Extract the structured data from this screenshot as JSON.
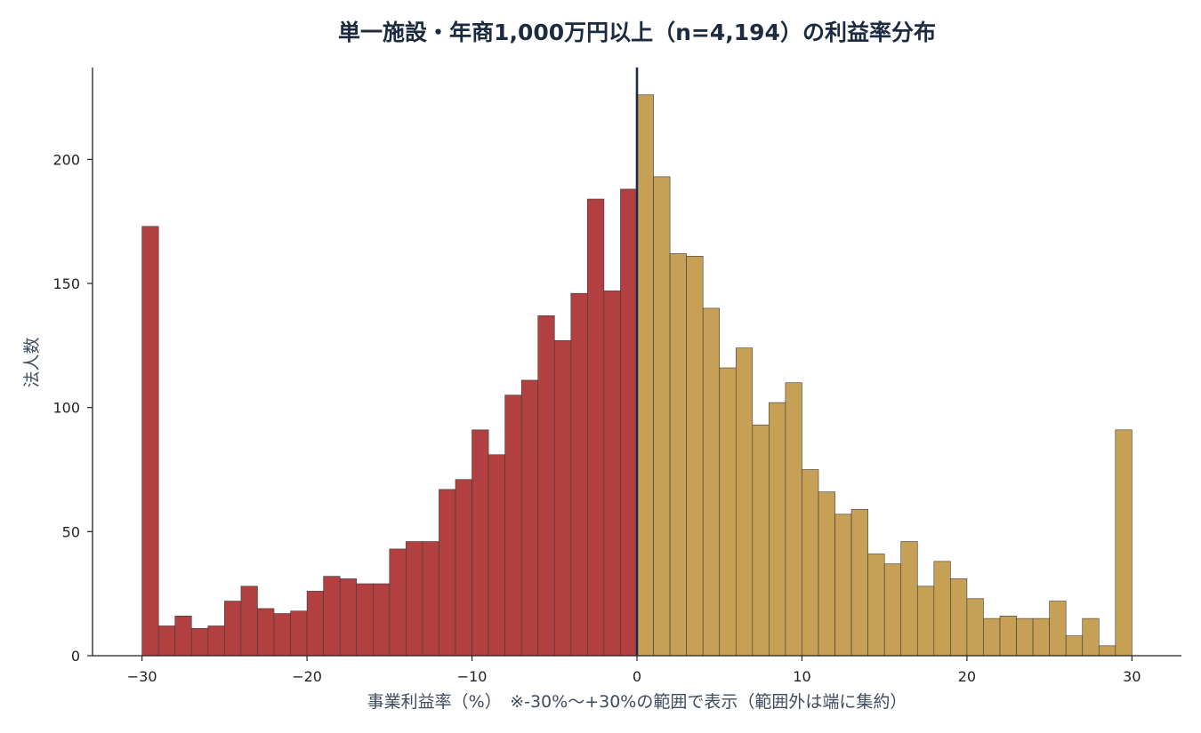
{
  "chart_data": {
    "type": "bar",
    "title": "単一施設・年商1,000万円以上（n=4,194）の利益率分布",
    "xlabel": "事業利益率（%）　※-30%〜+30%の範囲で表示（範囲外は端に集約）",
    "ylabel": "法人数",
    "xlim": [
      -33,
      33
    ],
    "ylim": [
      0,
      237
    ],
    "xticks": [
      -30,
      -20,
      -10,
      0,
      10,
      20,
      30
    ],
    "xtick_labels": [
      "−30",
      "−20",
      "−10",
      "0",
      "10",
      "20",
      "30"
    ],
    "yticks": [
      0,
      50,
      100,
      150,
      200
    ],
    "ytick_labels": [
      "0",
      "50",
      "100",
      "150",
      "200"
    ],
    "bin_width": 1,
    "bin_start": -30,
    "values": [
      173,
      12,
      16,
      11,
      12,
      22,
      28,
      19,
      17,
      18,
      26,
      32,
      31,
      29,
      29,
      43,
      46,
      46,
      67,
      71,
      91,
      81,
      105,
      111,
      137,
      127,
      146,
      184,
      147,
      188,
      226,
      193,
      162,
      161,
      140,
      116,
      124,
      93,
      102,
      110,
      75,
      66,
      57,
      59,
      41,
      37,
      46,
      28,
      38,
      31,
      23,
      15,
      16,
      15,
      15,
      22,
      8,
      15,
      4,
      91
    ],
    "reference_line_x": 0,
    "grid": false,
    "colors": {
      "negative": "#b24040",
      "positive": "#c6a055",
      "bar_edge": "#3a3a3a",
      "reference_line": "#1c2b4a",
      "axis": "#222222"
    }
  }
}
